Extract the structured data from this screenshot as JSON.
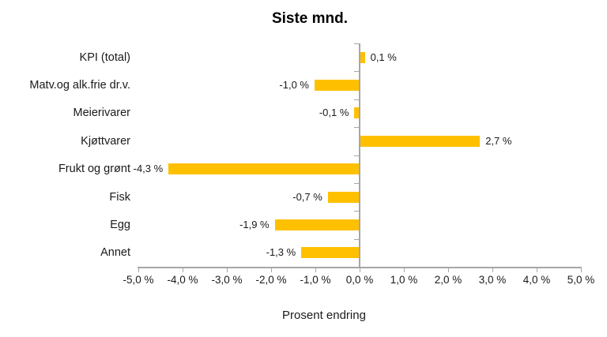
{
  "chart_data": {
    "type": "bar",
    "orientation": "horizontal",
    "title": "Siste mnd.",
    "xlabel": "Prosent endring",
    "ylabel": "",
    "categories": [
      "KPI (total)",
      "Matv.og alk.frie dr.v.",
      "Meierivarer",
      "Kjøttvarer",
      "Frukt og grønt",
      "Fisk",
      "Egg",
      "Annet"
    ],
    "values": [
      0.1,
      -1.0,
      -0.1,
      2.7,
      -4.3,
      -0.7,
      -1.9,
      -1.3
    ],
    "value_labels": [
      "0,1 %",
      "-1,0 %",
      "-0,1 %",
      "2,7 %",
      "-4,3 %",
      "-0,7 %",
      "-1,9 %",
      "-1,3 %"
    ],
    "xlim": [
      -5,
      5
    ],
    "x_ticks": [
      -5,
      -4,
      -3,
      -2,
      -1,
      0,
      1,
      2,
      3,
      4,
      5
    ],
    "x_tick_labels": [
      "-5,0 %",
      "-4,0 %",
      "-3,0 %",
      "-2,0 %",
      "-1,0 %",
      "0,0 %",
      "1,0 %",
      "2,0 %",
      "3,0 %",
      "4,0 %",
      "5,0 %"
    ],
    "grid": false,
    "legend": "none",
    "bar_color": "#FFC000",
    "axis_color": "#A6A6A6",
    "text_color": "#1a1a1a",
    "background_color": "#FFFFFF"
  }
}
